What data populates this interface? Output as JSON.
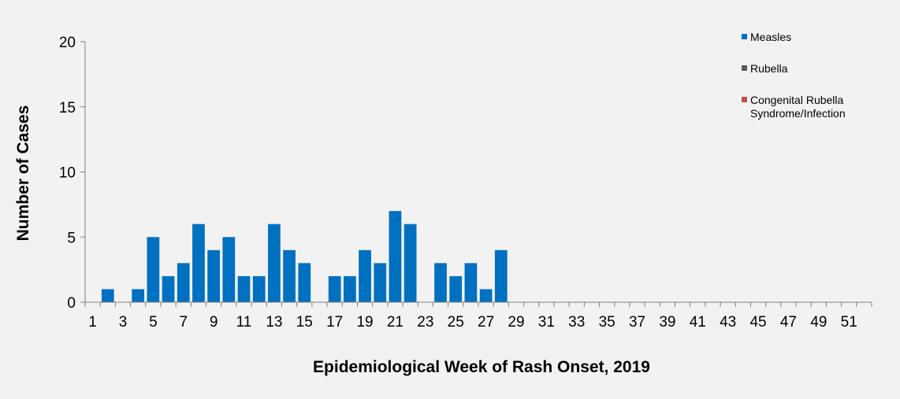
{
  "chart_data": {
    "type": "bar",
    "title": "",
    "xlabel": "Epidemiological Week of Rash Onset, 2019",
    "ylabel": "Number of Cases",
    "ylim": [
      0,
      20
    ],
    "yticks": [
      "0",
      "5",
      "10",
      "15",
      "20"
    ],
    "x_tick_labels": [
      "1",
      "3",
      "5",
      "7",
      "9",
      "11",
      "13",
      "15",
      "17",
      "19",
      "21",
      "23",
      "25",
      "27",
      "29",
      "31",
      "33",
      "35",
      "37",
      "39",
      "41",
      "43",
      "45",
      "47",
      "49",
      "51"
    ],
    "weeks": [
      1,
      2,
      3,
      4,
      5,
      6,
      7,
      8,
      9,
      10,
      11,
      12,
      13,
      14,
      15,
      16,
      17,
      18,
      19,
      20,
      21,
      22,
      23,
      24,
      25,
      26,
      27,
      28,
      29,
      30,
      31,
      32,
      33,
      34,
      35,
      36,
      37,
      38,
      39,
      40,
      41,
      42,
      43,
      44,
      45,
      46,
      47,
      48,
      49,
      50,
      51,
      52
    ],
    "series": [
      {
        "name": "Measles",
        "color": "#0070c0",
        "values": [
          0,
          1,
          0,
          1,
          5,
          2,
          3,
          6,
          4,
          5,
          2,
          2,
          6,
          4,
          3,
          0,
          2,
          2,
          4,
          3,
          7,
          6,
          0,
          3,
          2,
          3,
          1,
          4,
          0,
          0,
          0,
          0,
          0,
          0,
          0,
          0,
          0,
          0,
          0,
          0,
          0,
          0,
          0,
          0,
          0,
          0,
          0,
          0,
          0,
          0,
          0,
          0
        ]
      },
      {
        "name": "Rubella",
        "color": "#595959",
        "values": [
          0,
          0,
          0,
          0,
          0,
          0,
          0,
          0,
          0,
          0,
          0,
          0,
          0,
          0,
          0,
          0,
          0,
          0,
          0,
          0,
          0,
          0,
          0,
          0,
          0,
          0,
          0,
          0,
          0,
          0,
          0,
          0,
          0,
          0,
          0,
          0,
          0,
          0,
          0,
          0,
          0,
          0,
          0,
          0,
          0,
          0,
          0,
          0,
          0,
          0,
          0,
          0
        ]
      },
      {
        "name": "Congenital Rubella Syndrome/Infection",
        "legend_lines": [
          "Congenital Rubella",
          "Syndrome/Infection"
        ],
        "color": "#c0504d",
        "values": [
          0,
          0,
          0,
          0,
          0,
          0,
          0,
          0,
          0,
          0,
          0,
          0,
          0,
          0,
          0,
          0,
          0,
          0,
          0,
          0,
          0,
          0,
          0,
          0,
          0,
          0,
          0,
          0,
          0,
          0,
          0,
          0,
          0,
          0,
          0,
          0,
          0,
          0,
          0,
          0,
          0,
          0,
          0,
          0,
          0,
          0,
          0,
          0,
          0,
          0,
          0,
          0
        ]
      }
    ],
    "grid": false,
    "legend_position": "top-right"
  }
}
